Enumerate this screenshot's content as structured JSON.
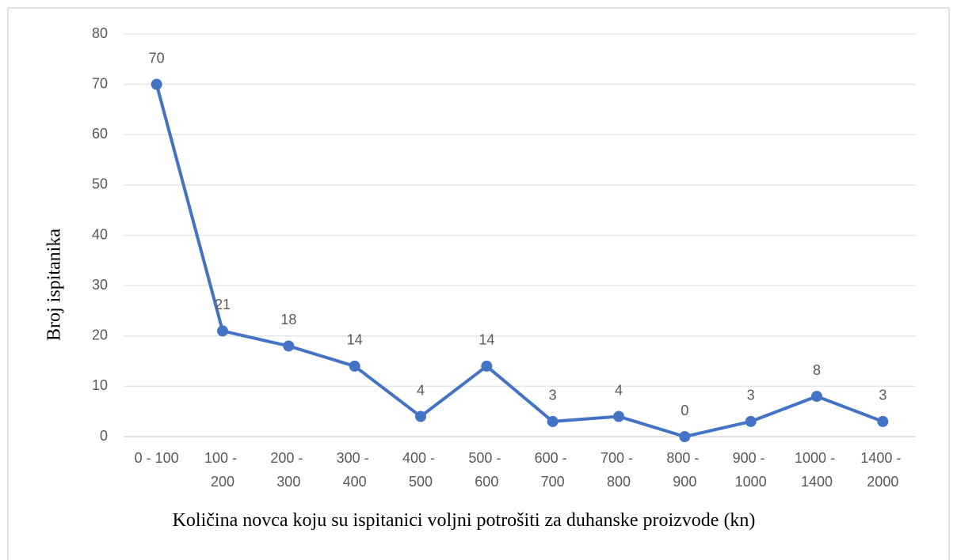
{
  "chart_data": {
    "type": "line",
    "x_label": "Količina novca koju su ispitanici voljni potrošiti za duhanske proizvode (kn)",
    "y_label": "Broj ispitanika",
    "categories": [
      "0 - 100",
      "100 - 200",
      "200 - 300",
      "300 - 400",
      "400 - 500",
      "500 - 600",
      "600 - 700",
      "700 - 800",
      "800 - 900",
      "900 - 1000",
      "1000 - 1400",
      "1400 - 2000"
    ],
    "values": [
      70,
      21,
      18,
      14,
      4,
      14,
      3,
      4,
      0,
      3,
      8,
      3
    ],
    "color": "#4472c4",
    "ylim": [
      0,
      80
    ],
    "yticks": [
      0,
      10,
      20,
      30,
      40,
      50,
      60,
      70,
      80
    ],
    "grid": true
  }
}
